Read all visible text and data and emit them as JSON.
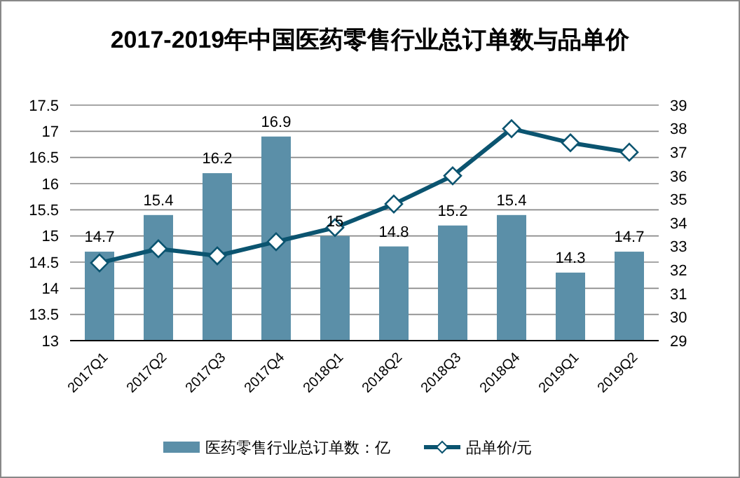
{
  "chart_data": {
    "type": "bar",
    "title": "2017-2019年中国医药零售行业总订单数与品单价",
    "categories": [
      "2017Q1",
      "2017Q2",
      "2017Q3",
      "2017Q4",
      "2018Q1",
      "2018Q2",
      "2018Q3",
      "2018Q4",
      "2019Q1",
      "2019Q2"
    ],
    "series": [
      {
        "name": "医药零售行业总订单数：亿",
        "color": "#5b8fa8",
        "values": [
          14.7,
          15.4,
          16.2,
          16.9,
          15,
          14.8,
          15.2,
          15.4,
          14.3,
          14.7
        ],
        "value_labels": [
          "14.7",
          "15.4",
          "16.2",
          "16.9",
          "15",
          "14.8",
          "15.2",
          "15.4",
          "14.3",
          "14.7"
        ]
      },
      {
        "name": "品单价/元",
        "type": "line",
        "axis": "y2",
        "color": "#0b5470",
        "marker": "diamond",
        "values": [
          32.3,
          32.9,
          32.6,
          33.2,
          33.8,
          34.8,
          36.0,
          38.0,
          37.4,
          37.0
        ]
      }
    ],
    "ylim": [
      13,
      17.5
    ],
    "yticks": [
      13,
      13.5,
      14,
      14.5,
      15,
      15.5,
      16,
      16.5,
      17,
      17.5
    ],
    "y2lim": [
      29,
      39
    ],
    "y2ticks": [
      29,
      30,
      31,
      32,
      33,
      34,
      35,
      36,
      37,
      38,
      39
    ],
    "grid": "y",
    "legend": "bottom"
  }
}
